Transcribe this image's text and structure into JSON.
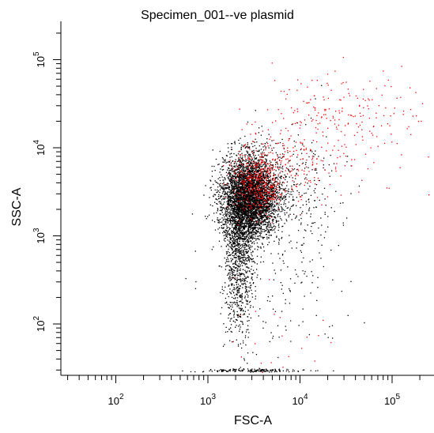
{
  "chart_data": {
    "type": "scatter",
    "title": "Specimen_001--ve plasmid",
    "xlabel": "FSC-A",
    "ylabel": "SSC-A",
    "xscale": "log",
    "yscale": "log",
    "xlim": [
      20,
      26000
    ],
    "ylim": [
      28,
      280000
    ],
    "x_major_ticks": [
      100,
      1000,
      10000,
      100000
    ],
    "y_major_ticks": [
      100,
      1000,
      10000,
      100000
    ],
    "x_tick_labels": [
      "10^2",
      "10^3",
      "10^4",
      "10^5"
    ],
    "y_tick_labels": [
      "10^2",
      "10^3",
      "10^4",
      "10^5"
    ],
    "grid": false,
    "series": [
      {
        "color": "#000000",
        "clusters": [
          {
            "center": [
              2800,
              2800
            ],
            "log_spread": [
              0.15,
              0.22
            ],
            "count": 4200
          },
          {
            "center": [
              2200,
              900
            ],
            "log_spread": [
              0.08,
              0.35
            ],
            "count": 900
          },
          {
            "center": [
              2100,
              200
            ],
            "log_spread": [
              0.08,
              0.3
            ],
            "count": 250
          },
          {
            "center": [
              6000,
              3000
            ],
            "log_spread": [
              0.3,
              0.35
            ],
            "count": 450
          },
          {
            "center": [
              6000,
              250
            ],
            "log_spread": [
              0.35,
              0.4
            ],
            "count": 120
          },
          {
            "center": [
              3000,
              30
            ],
            "log_spread": [
              0.3,
              0.01
            ],
            "count": 160
          }
        ]
      },
      {
        "color": "#ff0000",
        "clusters": [
          {
            "center": [
              3500,
              4200
            ],
            "log_spread": [
              0.15,
              0.18
            ],
            "count": 450
          },
          {
            "center": [
              25000,
              20000
            ],
            "log_spread": [
              0.45,
              0.3
            ],
            "count": 230
          },
          {
            "center": [
              9000,
              8000
            ],
            "log_spread": [
              0.25,
              0.25
            ],
            "count": 120
          },
          {
            "center": [
              6000,
              60
            ],
            "log_spread": [
              0.4,
              0.25
            ],
            "count": 25
          }
        ]
      }
    ]
  }
}
